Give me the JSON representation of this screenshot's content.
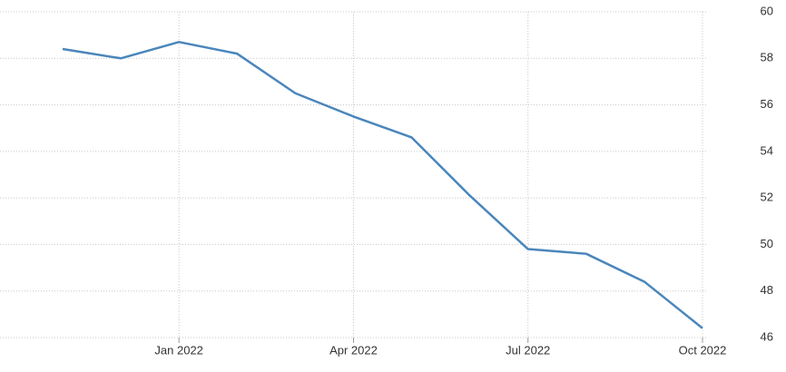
{
  "chart_data": {
    "type": "line",
    "categories": [
      null,
      null,
      "Jan 2022",
      null,
      null,
      "Apr 2022",
      null,
      null,
      "Jul 2022",
      null,
      null,
      "Oct 2022"
    ],
    "series": [
      {
        "color": "#4a86bb",
        "values": [
          58.4,
          58.0,
          58.7,
          58.2,
          56.5,
          55.5,
          54.6,
          52.1,
          49.8,
          49.6,
          48.4,
          46.4
        ]
      }
    ],
    "ylim": [
      46,
      60
    ],
    "yticks": [
      46,
      48,
      50,
      52,
      54,
      56,
      58,
      60
    ],
    "grid": true,
    "y_axis_side": "right"
  }
}
